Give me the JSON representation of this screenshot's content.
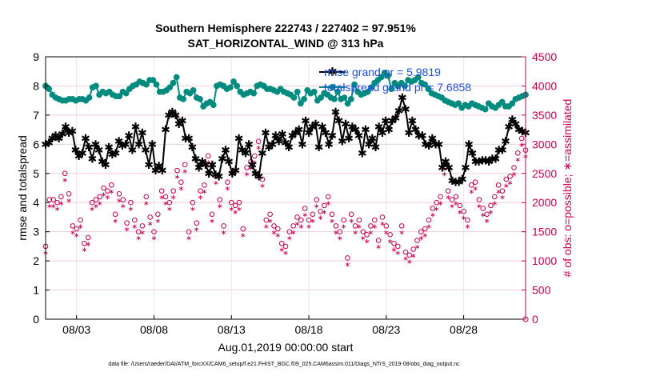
{
  "chart_data": {
    "type": "line",
    "title": "Southern Hemisphere 222743 / 227402 = 97.951%",
    "subtitle": "SAT_HORIZONTAL_WIND @ 313 hPa",
    "xlabel": "Aug.01,2019 00:00:00 start",
    "ylabel": "rmse and totalspread",
    "ylabel_right": "# of obs: o=possible; ∗=assimilated",
    "x_ticks": [
      "08/03",
      "08/08",
      "08/13",
      "08/18",
      "08/23",
      "08/28"
    ],
    "x_tick_days": [
      3,
      8,
      13,
      18,
      23,
      28
    ],
    "xlim": [
      1,
      32
    ],
    "ylim": [
      0,
      9
    ],
    "y_ticks": [
      "0",
      "1",
      "2",
      "3",
      "4",
      "5",
      "6",
      "7",
      "8",
      "9"
    ],
    "ylim_right": [
      0,
      4500
    ],
    "y_ticks_right": [
      "0",
      "500",
      "1000",
      "1500",
      "2000",
      "2500",
      "3000",
      "3500",
      "4000",
      "4500"
    ],
    "grid": true,
    "legend_position": "top-right",
    "footer": "data file: /Users/raeder/DAI/ATM_forcXX/CAM6_setup/f.e21.FHIST_BGC.f09_025.CAM6assim.011/Diags_NTrS_2019-08/obs_diag_output.nc",
    "colors": {
      "rmse": "#000000",
      "totalspread": "#008b7f",
      "obs": "#c8004f",
      "legend_text": "#1f4ee6"
    },
    "series": [
      {
        "name": "rmse grand pr = 5.9819",
        "axis": "left",
        "marker": "asterisk",
        "values": [
          6.0,
          6.05,
          6.2,
          6.3,
          6.2,
          6.35,
          6.6,
          6.4,
          6.45,
          5.8,
          5.6,
          5.7,
          6.2,
          5.9,
          5.5,
          6.0,
          5.8,
          5.4,
          5.3,
          5.9,
          5.65,
          5.7,
          6.1,
          5.95,
          6.0,
          6.3,
          5.8,
          6.6,
          6.0,
          6.4,
          5.8,
          5.3,
          6.0,
          5.1,
          5.25,
          5.1,
          6.5,
          7.0,
          7.1,
          7.0,
          6.7,
          6.8,
          6.2,
          6.2,
          5.9,
          5.5,
          5.2,
          5.4,
          5.3,
          5.0,
          5.3,
          4.95,
          4.9,
          5.5,
          5.8,
          5.4,
          5.0,
          5.1,
          6.2,
          5.8,
          5.7,
          6.0,
          5.3,
          5.0,
          4.9,
          5.7,
          6.4,
          5.9,
          6.0,
          6.3,
          6.1,
          6.35,
          6.05,
          5.9,
          6.3,
          6.4,
          6.5,
          6.0,
          6.8,
          6.4,
          6.6,
          6.7,
          5.9,
          6.6,
          6.4,
          6.0,
          6.3,
          7.1,
          6.8,
          6.1,
          6.7,
          6.2,
          6.6,
          6.5,
          6.3,
          5.7,
          6.5,
          6.0,
          6.2,
          5.9,
          6.6,
          6.4,
          6.8,
          6.5,
          6.8,
          6.9,
          7.15,
          7.6,
          7.2,
          6.4,
          6.8,
          6.5,
          6.3,
          6.3,
          6.0,
          5.95,
          6.2,
          6.0,
          6.0,
          5.2,
          5.4,
          5.2,
          4.75,
          4.7,
          4.7,
          4.8,
          5.2,
          6.0,
          5.7,
          5.4,
          5.4,
          5.45,
          5.45,
          5.4,
          5.5,
          5.5,
          5.8,
          5.8,
          6.1,
          6.6,
          6.85,
          6.7,
          6.5,
          6.45,
          6.4
        ]
      },
      {
        "name": "totalspread grand pr = 7.6858",
        "axis": "left",
        "marker": "circle",
        "values": [
          8.0,
          7.9,
          7.7,
          7.6,
          7.55,
          7.5,
          7.5,
          7.55,
          7.55,
          7.5,
          7.55,
          7.55,
          7.5,
          7.6,
          7.95,
          8.0,
          7.7,
          7.8,
          7.75,
          7.8,
          7.7,
          7.65,
          7.65,
          7.8,
          7.75,
          7.9,
          8.0,
          8.05,
          8.15,
          8.1,
          8.05,
          8.2,
          8.2,
          8.05,
          7.8,
          7.8,
          7.85,
          7.95,
          8.1,
          8.3,
          7.6,
          7.55,
          7.8,
          7.75,
          7.85,
          7.6,
          7.55,
          7.3,
          7.4,
          7.45,
          7.35,
          8.0,
          8.05,
          8.0,
          7.9,
          7.95,
          8.15,
          8.0,
          7.8,
          7.7,
          7.75,
          7.8,
          7.75,
          8.0,
          8.05,
          8.0,
          7.9,
          7.9,
          7.85,
          7.8,
          7.9,
          7.8,
          7.75,
          7.7,
          7.6,
          7.8,
          7.4,
          7.55,
          7.85,
          7.75,
          7.8,
          7.5,
          7.6,
          7.75,
          7.7,
          7.6,
          7.55,
          7.8,
          7.55,
          7.6,
          7.4,
          7.55,
          8.05,
          7.8,
          7.7,
          7.75,
          7.8,
          7.95,
          8.1,
          8.2,
          8.3,
          8.45,
          8.35,
          7.9,
          8.1,
          8.0,
          8.1,
          8.0,
          8.2,
          8.15,
          8.2,
          8.3,
          8.1,
          8.05,
          7.9,
          7.75,
          7.7,
          7.65,
          7.6,
          7.5,
          7.45,
          7.4,
          7.35,
          7.4,
          7.25,
          7.35,
          7.3,
          7.4,
          7.35,
          7.3,
          7.25,
          7.2,
          7.4,
          7.3,
          7.25,
          7.35,
          7.45,
          7.3,
          7.3,
          7.4,
          7.55,
          7.6,
          7.65,
          7.7
        ]
      }
    ],
    "obs_possible": [
      1250,
      2050,
      2050,
      2000,
      2100,
      2500,
      2150,
      1600,
      1550,
      1700,
      1300,
      1400,
      2000,
      2050,
      2100,
      2250,
      2200,
      2300,
      1800,
      2150,
      2050,
      1650,
      2000,
      1700,
      1500,
      1600,
      2100,
      1750,
      1500,
      1800,
      2200,
      2100,
      2000,
      2200,
      2550,
      2350,
      2650,
      1500,
      2000,
      1650,
      2200,
      2300,
      2800,
      1800,
      2450,
      2050,
      1600,
      2350,
      2000,
      1950,
      2000,
      1550,
      2600,
      2700,
      2800,
      3050,
      2400,
      1700,
      1800,
      1600,
      1550,
      1300,
      1250,
      1500,
      1600,
      1750,
      1700,
      1900,
      1700,
      1800,
      2050,
      1850,
      1950,
      2100,
      1800,
      1600,
      1500,
      1700,
      1050,
      1800,
      1600,
      1700,
      1500,
      1450,
      1600,
      1700,
      1350,
      1750,
      1600,
      1450,
      1300,
      1250,
      1600,
      1150,
      1100,
      1200,
      1350,
      1500,
      1550,
      1700,
      1900,
      2000,
      2100,
      2600,
      2200,
      2050,
      2100,
      1950,
      1850,
      1700,
      2300,
      2350,
      2050,
      1900,
      1800,
      1950,
      2100,
      2300,
      2200,
      2400,
      2450,
      2600,
      2850,
      3100,
      2900
    ]
  }
}
